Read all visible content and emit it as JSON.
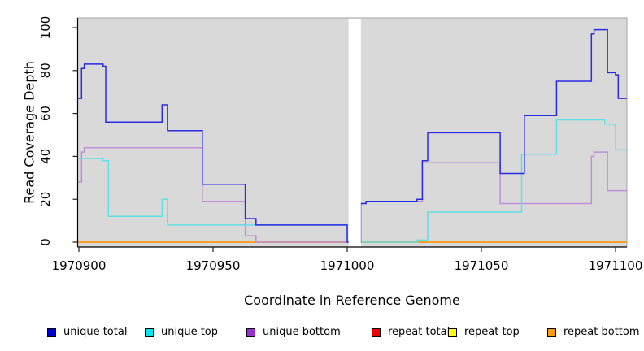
{
  "chart_data": {
    "type": "line",
    "subtype": "step-after",
    "title": "",
    "xlabel": "Coordinate in Reference Genome",
    "ylabel": "Read Coverage Depth",
    "xlim": [
      1970899.5,
      1971104.2
    ],
    "ylim": [
      0,
      105
    ],
    "grid": false,
    "legend_position": "bottom",
    "panel_background": "#d9d9d9",
    "gap_region": {
      "from": 1971000.5,
      "to": 1971005.1,
      "color": "#ffffff"
    },
    "x_ticks": [
      1970900,
      1970950,
      1971000,
      1971050,
      1971100
    ],
    "x_tick_labels": [
      "1970900",
      "1970950",
      "1971000",
      "1971050",
      "1971100"
    ],
    "y_ticks": [
      0,
      20,
      40,
      60,
      80,
      100
    ],
    "y_tick_labels": [
      "0",
      "20",
      "40",
      "60",
      "80",
      "100"
    ],
    "series": [
      {
        "name": "repeat total",
        "color": "#dd0000",
        "points": [
          [
            1970900,
            0
          ]
        ]
      },
      {
        "name": "repeat top",
        "color": "#f0e442",
        "points": [
          [
            1970900,
            0
          ]
        ]
      },
      {
        "name": "repeat bottom",
        "color": "#ff9e1b",
        "points": [
          [
            1970900,
            0
          ]
        ]
      },
      {
        "name": "unique bottom",
        "color": "#bd90d8",
        "points": [
          [
            1970900,
            28
          ],
          [
            1970901,
            42
          ],
          [
            1970902,
            44
          ],
          [
            1970946,
            19
          ],
          [
            1970962,
            3
          ],
          [
            1970966,
            0
          ],
          [
            1971005,
            18
          ],
          [
            1971007,
            19
          ],
          [
            1971028,
            37
          ],
          [
            1971057,
            18
          ],
          [
            1971091,
            40
          ],
          [
            1971092,
            42
          ],
          [
            1971097,
            24
          ]
        ]
      },
      {
        "name": "unique top",
        "color": "#63dfe6",
        "points": [
          [
            1970900,
            39
          ],
          [
            1970909,
            38
          ],
          [
            1970911,
            12
          ],
          [
            1970931,
            20
          ],
          [
            1970933,
            8
          ],
          [
            1971000,
            0
          ],
          [
            1971026,
            1
          ],
          [
            1971030,
            14
          ],
          [
            1971065,
            41
          ],
          [
            1971078,
            57
          ],
          [
            1971096,
            55
          ],
          [
            1971100,
            43
          ]
        ]
      },
      {
        "name": "unique total",
        "color": "#2a2ae0",
        "points": [
          [
            1970900,
            67
          ],
          [
            1970901,
            81
          ],
          [
            1970902,
            83
          ],
          [
            1970909,
            82
          ],
          [
            1970910,
            56
          ],
          [
            1970931,
            64
          ],
          [
            1970933,
            52
          ],
          [
            1970946,
            27
          ],
          [
            1970962,
            11
          ],
          [
            1970966,
            8
          ],
          [
            1971000,
            0
          ],
          [
            1971005,
            18
          ],
          [
            1971007,
            19
          ],
          [
            1971026,
            20
          ],
          [
            1971028,
            38
          ],
          [
            1971030,
            51
          ],
          [
            1971057,
            32
          ],
          [
            1971066,
            59
          ],
          [
            1971078,
            75
          ],
          [
            1971091,
            97
          ],
          [
            1971092,
            99
          ],
          [
            1971097,
            79
          ],
          [
            1971100,
            78
          ],
          [
            1971101,
            67
          ]
        ]
      }
    ]
  },
  "legend": {
    "items": [
      {
        "label": "unique total",
        "color": "#0000cd"
      },
      {
        "label": "unique top",
        "color": "#00e5ee"
      },
      {
        "label": "unique bottom",
        "color": "#9b30d0"
      },
      {
        "label": "repeat total",
        "color": "#ee0000"
      },
      {
        "label": "repeat top",
        "color": "#ffff00"
      },
      {
        "label": "repeat bottom",
        "color": "#ff9912"
      }
    ]
  }
}
